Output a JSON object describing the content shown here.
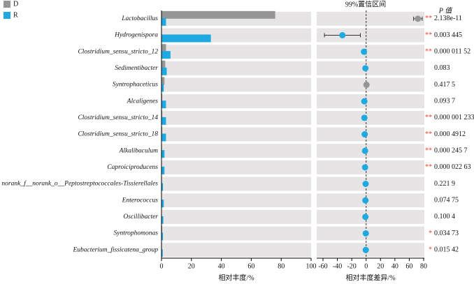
{
  "chart_data": [
    {
      "type": "bar",
      "orientation": "horizontal",
      "categories": [
        "Lactobacillus",
        "Hydrogenispora",
        "Clostridium_sensu_stricto_12",
        "Sedimentibacter",
        "Syntrophaceticus",
        "Alcaligenes",
        "Clostridium_sensu_stricto_14",
        "Clostridium_sensu_stricto_18",
        "Alkalibaculum",
        "Caproiciproducens",
        "norank_f__norank_o__Peptostreptococcales-Tissierellales",
        "Enterococcus",
        "Oscillibacter",
        "Syntrophomonas",
        "Eubacterium_fissicatena_group"
      ],
      "series": [
        {
          "name": "D",
          "color": "#959595",
          "values": [
            76,
            0,
            3,
            2.5,
            2,
            0.5,
            0.5,
            0.5,
            0.3,
            0.2,
            0.3,
            0.2,
            0.2,
            0.5,
            0.3
          ]
        },
        {
          "name": "R",
          "color": "#1fa9e1",
          "values": [
            3,
            33,
            6,
            3.5,
            1.5,
            3,
            3,
            3,
            2,
            2,
            1,
            1.5,
            1.2,
            1,
            0.8
          ]
        }
      ],
      "xlim": [
        0,
        100
      ],
      "xticks": [
        0,
        20,
        40,
        60,
        80,
        100
      ],
      "xlabel": "相对丰度/%",
      "legend": "top-left"
    },
    {
      "type": "errorbar",
      "title": "99%置信区间",
      "values": [
        72,
        -33,
        -3,
        -1,
        0.5,
        -2.5,
        -2.5,
        -2,
        -1.5,
        -1.5,
        -0.7,
        -1,
        -1,
        -0.5,
        -0.5
      ],
      "ci_lower": [
        66,
        -58,
        -5,
        -3,
        -1,
        -5,
        -4,
        -4,
        -3,
        -3,
        -2,
        -2.5,
        -2.5,
        -1.5,
        -1.5
      ],
      "ci_upper": [
        78,
        -8,
        -1,
        1,
        2,
        0,
        -1,
        0,
        0,
        0,
        0.5,
        0.5,
        0.5,
        0.5,
        0.5
      ],
      "colors": [
        "#959595",
        "#1fa9e1",
        "#1fa9e1",
        "#1fa9e1",
        "#959595",
        "#1fa9e1",
        "#1fa9e1",
        "#1fa9e1",
        "#1fa9e1",
        "#1fa9e1",
        "#1fa9e1",
        "#1fa9e1",
        "#1fa9e1",
        "#1fa9e1",
        "#1fa9e1"
      ],
      "xlim": [
        -60,
        80
      ],
      "xticks": [
        -60,
        -40,
        -20,
        0,
        20,
        40,
        60,
        80
      ],
      "xlabel": "相对丰度差异/%",
      "p_header": "P 值",
      "p_values": [
        2.138e-11,
        0.003445,
        1.152e-05,
        0.083,
        0.4175,
        0.0937,
        1.233e-06,
        0.0004912,
        0.0002457,
        2.263e-05,
        0.2219,
        0.07475,
        0.1004,
        0.03473,
        0.01542
      ],
      "p_value_labels": [
        "2.138e-11",
        "0.003 445",
        "0.000 011 52",
        "0.083",
        "0.417 5",
        "0.093 7",
        "0.000 001 233",
        "0.000 4912",
        "0.000 245 7",
        "0.000 022 63",
        "0.221 9",
        "0.074 75",
        "0.100 4",
        "0.034 73",
        "0.015 42"
      ],
      "significance": [
        "**",
        "**",
        "**",
        null,
        null,
        null,
        "**",
        "**",
        "**",
        "**",
        null,
        null,
        null,
        "*",
        "*"
      ]
    }
  ]
}
